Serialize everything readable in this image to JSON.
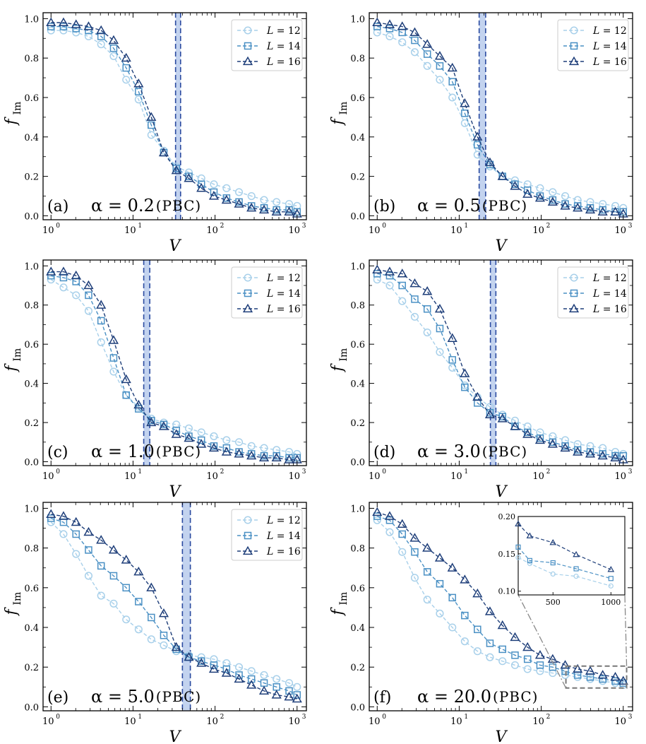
{
  "chart_data": {
    "type": "line",
    "xscale": "log",
    "xlim": [
      0.8,
      1300
    ],
    "ylim": [
      -0.02,
      1.03
    ],
    "xticks": [
      1,
      10,
      100,
      1000
    ],
    "xtick_labels": [
      {
        "base": "10",
        "exp": "0"
      },
      {
        "base": "10",
        "exp": "1"
      },
      {
        "base": "10",
        "exp": "2"
      },
      {
        "base": "10",
        "exp": "3"
      }
    ],
    "yticks": [
      0.0,
      0.2,
      0.4,
      0.6,
      0.8,
      1.0
    ],
    "ytick_labels": [
      "0.0",
      "0.2",
      "0.4",
      "0.6",
      "0.8",
      "1.0"
    ],
    "xlabel": "V",
    "ylabel_main": "f",
    "ylabel_sub": "Im",
    "series_styles": [
      {
        "name": "L = 12",
        "L": "L",
        "eq": "= 12",
        "marker": "circle",
        "color": "#a8d0ea"
      },
      {
        "name": "L = 14",
        "L": "L",
        "eq": "= 14",
        "marker": "square",
        "color": "#4a90c4"
      },
      {
        "name": "L = 16",
        "L": "L",
        "eq": "= 16",
        "marker": "triangle",
        "color": "#1f3f7a"
      }
    ],
    "band_color": "#c3d3ef",
    "band_line_color": "#2a4aa0",
    "x": [
      1,
      1.42,
      2.02,
      2.87,
      4.08,
      5.8,
      8.25,
      11.7,
      16.7,
      23.7,
      33.7,
      47.9,
      68.1,
      96.8,
      138,
      196,
      278,
      396,
      562,
      800,
      1000
    ],
    "panels": [
      {
        "label": "(a)",
        "alpha": "α = 0.2",
        "bc": "(PBC)",
        "band": [
          33,
          38
        ],
        "legend": true,
        "series": [
          [
            0.94,
            0.94,
            0.93,
            0.91,
            0.87,
            0.81,
            0.69,
            0.59,
            0.41,
            0.33,
            0.25,
            0.22,
            0.19,
            0.16,
            0.14,
            0.12,
            0.1,
            0.08,
            0.07,
            0.06,
            0.05
          ],
          [
            0.96,
            0.96,
            0.95,
            0.94,
            0.91,
            0.85,
            0.75,
            0.63,
            0.46,
            0.32,
            0.24,
            0.2,
            0.16,
            0.12,
            0.09,
            0.07,
            0.05,
            0.04,
            0.03,
            0.03,
            0.02
          ],
          [
            0.98,
            0.98,
            0.97,
            0.96,
            0.94,
            0.89,
            0.8,
            0.67,
            0.5,
            0.32,
            0.23,
            0.19,
            0.14,
            0.1,
            0.08,
            0.06,
            0.04,
            0.03,
            0.02,
            0.02,
            0.01
          ]
        ]
      },
      {
        "label": "(b)",
        "alpha": "α = 0.5",
        "bc": "(PBC)",
        "band": [
          17.5,
          21
        ],
        "legend": true,
        "series": [
          [
            0.93,
            0.91,
            0.88,
            0.83,
            0.76,
            0.69,
            0.6,
            0.47,
            0.31,
            0.25,
            0.2,
            0.18,
            0.16,
            0.14,
            0.12,
            0.1,
            0.08,
            0.07,
            0.06,
            0.05,
            0.04
          ],
          [
            0.96,
            0.95,
            0.93,
            0.89,
            0.82,
            0.76,
            0.68,
            0.52,
            0.36,
            0.26,
            0.2,
            0.16,
            0.13,
            0.1,
            0.08,
            0.06,
            0.05,
            0.04,
            0.03,
            0.02,
            0.02
          ],
          [
            0.98,
            0.97,
            0.96,
            0.93,
            0.87,
            0.81,
            0.75,
            0.57,
            0.4,
            0.27,
            0.2,
            0.15,
            0.11,
            0.09,
            0.07,
            0.05,
            0.04,
            0.03,
            0.02,
            0.02,
            0.01
          ]
        ]
      },
      {
        "label": "(c)",
        "alpha": "α = 1.0",
        "bc": "(PBC)",
        "band": [
          13.5,
          16
        ],
        "legend": true,
        "series": [
          [
            0.93,
            0.89,
            0.85,
            0.77,
            0.61,
            0.46,
            0.34,
            0.28,
            0.22,
            0.2,
            0.19,
            0.17,
            0.15,
            0.13,
            0.11,
            0.1,
            0.08,
            0.07,
            0.06,
            0.05,
            0.04
          ],
          [
            0.95,
            0.94,
            0.92,
            0.85,
            0.72,
            0.53,
            0.34,
            0.27,
            0.21,
            0.19,
            0.16,
            0.13,
            0.11,
            0.08,
            0.07,
            0.05,
            0.04,
            0.03,
            0.03,
            0.02,
            0.02
          ],
          [
            0.97,
            0.97,
            0.95,
            0.9,
            0.8,
            0.62,
            0.42,
            0.29,
            0.2,
            0.18,
            0.14,
            0.12,
            0.09,
            0.07,
            0.05,
            0.04,
            0.03,
            0.02,
            0.02,
            0.01,
            0.01
          ]
        ]
      },
      {
        "label": "(d)",
        "alpha": "α = 3.0",
        "bc": "(PBC)",
        "band": [
          24,
          28
        ],
        "legend": true,
        "series": [
          [
            0.93,
            0.9,
            0.82,
            0.74,
            0.66,
            0.56,
            0.48,
            0.39,
            0.33,
            0.28,
            0.24,
            0.21,
            0.18,
            0.15,
            0.13,
            0.11,
            0.09,
            0.08,
            0.07,
            0.05,
            0.04
          ],
          [
            0.96,
            0.95,
            0.9,
            0.83,
            0.78,
            0.68,
            0.52,
            0.38,
            0.3,
            0.25,
            0.23,
            0.18,
            0.15,
            0.12,
            0.1,
            0.08,
            0.06,
            0.05,
            0.04,
            0.03,
            0.03
          ],
          [
            0.98,
            0.97,
            0.96,
            0.91,
            0.87,
            0.78,
            0.63,
            0.45,
            0.33,
            0.24,
            0.22,
            0.18,
            0.14,
            0.11,
            0.09,
            0.07,
            0.05,
            0.04,
            0.03,
            0.02,
            0.01
          ]
        ]
      },
      {
        "label": "(e)",
        "alpha": "α = 5.0",
        "bc": "(PBC)",
        "band": [
          40,
          50
        ],
        "legend": true,
        "series": [
          [
            0.93,
            0.87,
            0.77,
            0.66,
            0.56,
            0.52,
            0.44,
            0.39,
            0.34,
            0.31,
            0.28,
            0.26,
            0.25,
            0.24,
            0.22,
            0.2,
            0.18,
            0.16,
            0.14,
            0.12,
            0.1
          ],
          [
            0.95,
            0.93,
            0.87,
            0.79,
            0.71,
            0.66,
            0.6,
            0.53,
            0.45,
            0.36,
            0.29,
            0.25,
            0.23,
            0.21,
            0.19,
            0.16,
            0.14,
            0.12,
            0.1,
            0.08,
            0.06
          ],
          [
            0.97,
            0.96,
            0.93,
            0.88,
            0.84,
            0.79,
            0.74,
            0.68,
            0.6,
            0.47,
            0.3,
            0.25,
            0.22,
            0.19,
            0.17,
            0.14,
            0.11,
            0.08,
            0.06,
            0.05,
            0.04
          ]
        ]
      },
      {
        "label": "(f)",
        "alpha": "α = 20.0",
        "bc": "(PBC)",
        "band": null,
        "legend": false,
        "series": [
          [
            0.94,
            0.88,
            0.78,
            0.65,
            0.54,
            0.47,
            0.4,
            0.33,
            0.28,
            0.25,
            0.23,
            0.21,
            0.19,
            0.18,
            0.17,
            0.16,
            0.15,
            0.14,
            0.13,
            0.12,
            0.11
          ],
          [
            0.96,
            0.94,
            0.87,
            0.78,
            0.68,
            0.62,
            0.55,
            0.46,
            0.39,
            0.32,
            0.29,
            0.26,
            0.24,
            0.21,
            0.2,
            0.18,
            0.16,
            0.15,
            0.14,
            0.13,
            0.12
          ],
          [
            0.98,
            0.96,
            0.92,
            0.85,
            0.8,
            0.75,
            0.7,
            0.64,
            0.57,
            0.48,
            0.41,
            0.35,
            0.3,
            0.26,
            0.24,
            0.21,
            0.19,
            0.18,
            0.16,
            0.15,
            0.13
          ]
        ]
      }
    ],
    "inset": {
      "panel": "(f)",
      "xlim": [
        200,
        1120
      ],
      "ylim": [
        0.095,
        0.2
      ],
      "xticks": [
        500,
        1000
      ],
      "xtick_labels": [
        "500",
        "1000"
      ],
      "yticks": [
        0.1,
        0.15,
        0.2
      ],
      "ytick_labels": [
        "0.10",
        "0.15",
        "0.20"
      ],
      "x": [
        200,
        300,
        500,
        700,
        1000
      ],
      "series": [
        [
          0.145,
          0.137,
          0.123,
          0.12,
          0.107
        ],
        [
          0.159,
          0.141,
          0.138,
          0.13,
          0.117
        ],
        [
          0.19,
          0.174,
          0.165,
          0.149,
          0.129
        ]
      ],
      "zoom_box_x": [
        200,
        1100
      ],
      "zoom_box_y": [
        0.095,
        0.205
      ]
    }
  }
}
